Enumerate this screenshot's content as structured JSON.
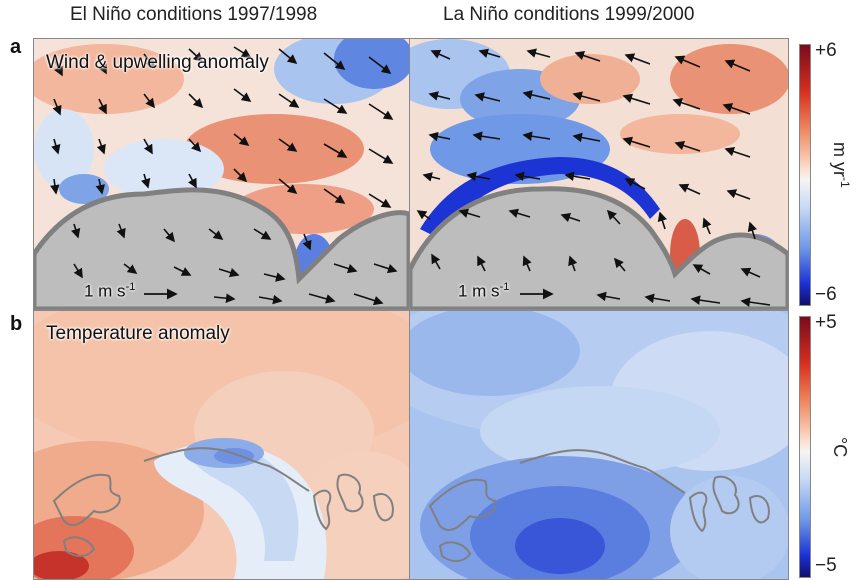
{
  "columns": {
    "left_title": "El Niño conditions 1997/1998",
    "right_title": "La Niño conditions 1999/2000"
  },
  "rows": {
    "a": {
      "letter": "a",
      "label": "Wind & upwelling anomaly",
      "scale_text": "1 m s",
      "scale_exp": "-1"
    },
    "b": {
      "letter": "b",
      "label": "Temperature anomaly"
    }
  },
  "colorbars": {
    "upwelling": {
      "max": "+6",
      "min": "−6",
      "unit": "m yr",
      "unit_exp": "-1"
    },
    "temperature": {
      "max": "+5",
      "min": "−5",
      "unit": "°C"
    }
  },
  "colors": {
    "warm_strong": "#b2182b",
    "warm": "#e8836d",
    "warm_light": "#f4c9b2",
    "neutral": "#f7f0ec",
    "cool_light": "#c9dcf5",
    "cool": "#6f98e6",
    "cool_strong": "#1a2fd6",
    "land": "#bdbdbd",
    "land_edge": "#7f7f7f"
  }
}
